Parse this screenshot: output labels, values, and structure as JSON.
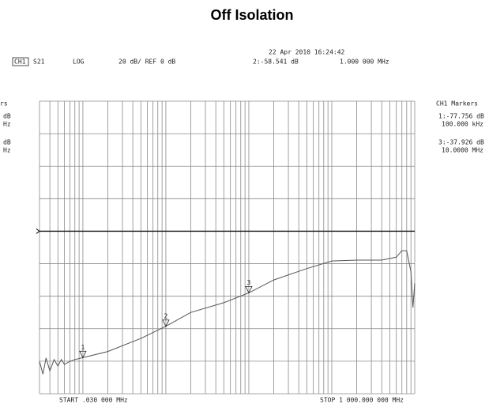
{
  "chart_data": {
    "type": "line",
    "title": "Off Isolation",
    "timestamp": "22 Apr 2010  16:24:42",
    "header": {
      "channel": "CH1",
      "param": "S21",
      "format": "LOG",
      "scale": "20 dB/ REF 0 dB",
      "active_marker": "2:-58.541 dB",
      "active_freq": "1.000 000 MHz"
    },
    "marker_panel": {
      "title": "CH1 Markers",
      "entries": [
        [
          "1:-77.756 dB",
          "100.000 kHz"
        ],
        [
          "3:-37.926 dB",
          "10.0000 MHz"
        ]
      ]
    },
    "left_panel": [
      "rs",
      "dB",
      "Hz",
      "dB",
      "Hz"
    ],
    "start_label": "START  .030 000 MHz",
    "stop_label": "STOP 1 000.000 000 MHz",
    "x_log": true,
    "xlim": [
      0.03,
      1000
    ],
    "ylim": [
      -100,
      80
    ],
    "yticks": [
      -100,
      -80,
      -60,
      -40,
      -20,
      0,
      20,
      40,
      60,
      80
    ],
    "xticks": [
      0.03,
      0.04,
      0.05,
      0.06,
      0.07,
      0.08,
      0.09,
      0.1,
      0.2,
      0.3,
      0.4,
      0.5,
      0.6,
      0.7,
      0.8,
      0.9,
      1,
      2,
      3,
      4,
      5,
      6,
      7,
      8,
      9,
      10,
      20,
      30,
      40,
      50,
      60,
      70,
      80,
      90,
      100,
      200,
      300,
      400,
      500,
      600,
      700,
      800,
      900,
      1000
    ],
    "reference": 0,
    "grid": true,
    "series": [
      {
        "name": "S21",
        "color": "#555555",
        "x": [
          0.03,
          0.033,
          0.036,
          0.04,
          0.045,
          0.05,
          0.055,
          0.06,
          0.07,
          0.08,
          0.1,
          0.2,
          0.5,
          1,
          2,
          5,
          10,
          20,
          50,
          100,
          200,
          400,
          600,
          700,
          800,
          900,
          950,
          1000
        ],
        "values": [
          -80,
          -88,
          -78,
          -86,
          -79,
          -83,
          -79,
          -82,
          -80,
          -79,
          -77.8,
          -74,
          -66,
          -58.5,
          -50,
          -44,
          -37.9,
          -30,
          -23,
          -18.3,
          -17.8,
          -17.8,
          -16,
          -12,
          -12,
          -25,
          -47,
          -32
        ]
      }
    ],
    "markers": [
      {
        "label": "1",
        "x": 0.1,
        "value": -77.756
      },
      {
        "label": "2",
        "x": 1,
        "value": -58.541
      },
      {
        "label": "3",
        "x": 10,
        "value": -37.926
      }
    ]
  }
}
